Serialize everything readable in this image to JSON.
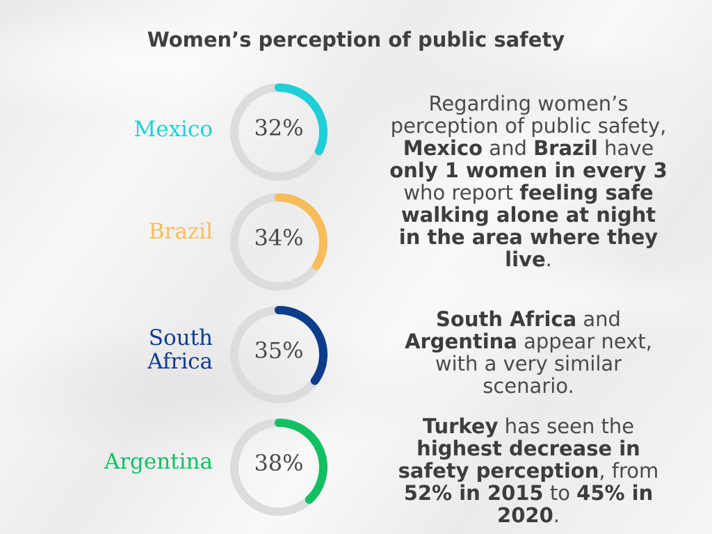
{
  "title": "Women’s perception of public safety",
  "chart_data": {
    "type": "donut",
    "title": "Women’s perception of public safety",
    "categories": [
      "Mexico",
      "Brazil",
      "South Africa",
      "Argentina"
    ],
    "values": [
      32,
      34,
      35,
      38
    ],
    "labels": [
      "32%",
      "34%",
      "35%",
      "38%"
    ],
    "colors": [
      "#1ecfd8",
      "#f7bd5a",
      "#0d3c8c",
      "#12c063"
    ],
    "track_color": "#dcdcdc",
    "max": 100
  },
  "paragraphs": [
    {
      "segments": [
        {
          "t": "Regarding women’s perception of public safety, "
        },
        {
          "t": "Mexico",
          "b": true
        },
        {
          "t": " and "
        },
        {
          "t": "Brazil",
          "b": true
        },
        {
          "t": " have "
        },
        {
          "t": "only 1 women in every 3",
          "b": true
        },
        {
          "t": " who report "
        },
        {
          "t": "feeling safe walking alone at night in the area where they live",
          "b": true
        },
        {
          "t": "."
        }
      ]
    },
    {
      "segments": [
        {
          "t": "South Africa",
          "b": true
        },
        {
          "t": " and "
        },
        {
          "t": "Argentina",
          "b": true
        },
        {
          "t": " appear next, with a very similar scenario."
        }
      ]
    },
    {
      "segments": [
        {
          "t": "Turkey",
          "b": true
        },
        {
          "t": " has seen the "
        },
        {
          "t": "highest decrease in safety perception",
          "b": true
        },
        {
          "t": ", from "
        },
        {
          "t": "52% in 2015",
          "b": true
        },
        {
          "t": " to "
        },
        {
          "t": "45% in 2020",
          "b": true
        },
        {
          "t": "."
        }
      ]
    }
  ]
}
